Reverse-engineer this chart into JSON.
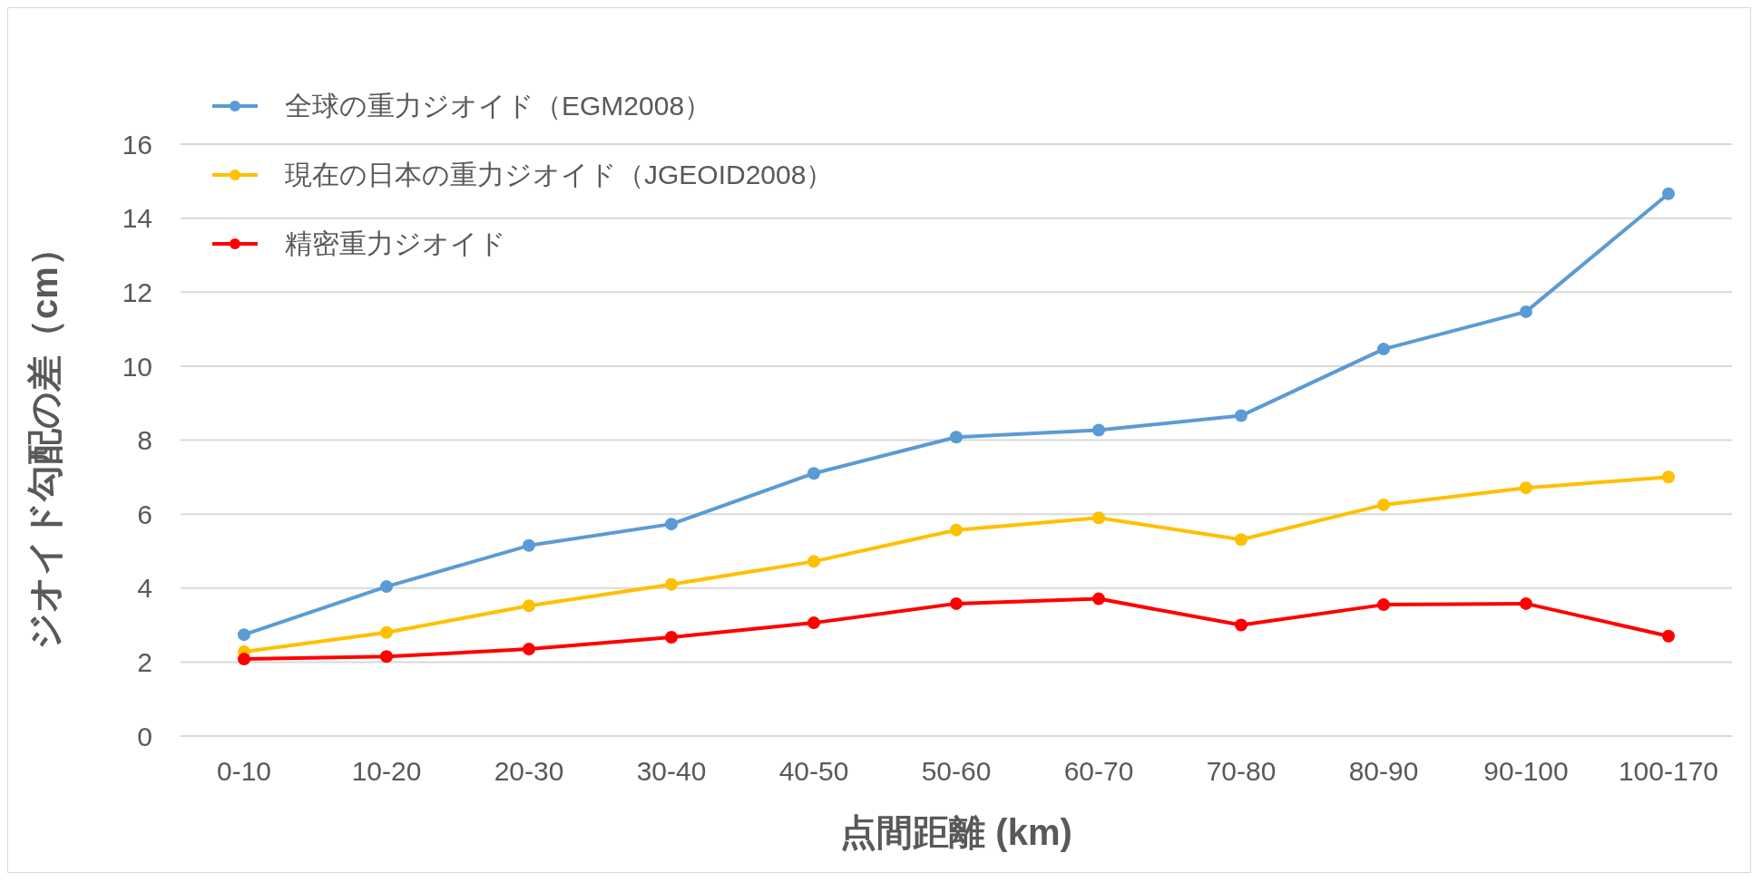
{
  "chart_data": {
    "type": "line",
    "xlabel": "点間距離 (km)",
    "ylabel": "ジオイド勾配の差（cm）",
    "categories": [
      "0-10",
      "10-20",
      "20-30",
      "30-40",
      "40-50",
      "50-60",
      "60-70",
      "70-80",
      "80-90",
      "90-100",
      "100-170"
    ],
    "series": [
      {
        "name": "全球の重力ジオイド（EGM2008）",
        "color": "#5b9bd5",
        "values": [
          2.74,
          4.04,
          5.15,
          5.73,
          7.1,
          8.08,
          8.27,
          8.66,
          10.46,
          11.47,
          14.66
        ]
      },
      {
        "name": "現在の日本の重力ジオイド（JGEOID2008）",
        "color": "#ffc000",
        "values": [
          2.28,
          2.8,
          3.52,
          4.1,
          4.72,
          5.57,
          5.9,
          5.31,
          6.25,
          6.71,
          7.0
        ]
      },
      {
        "name": "精密重力ジオイド",
        "color": "#ff0000",
        "values": [
          2.08,
          2.15,
          2.35,
          2.67,
          3.06,
          3.58,
          3.71,
          3.0,
          3.55,
          3.58,
          2.7
        ]
      }
    ],
    "ylim": [
      0,
      16
    ],
    "yticks": [
      0,
      2,
      4,
      6,
      8,
      10,
      12,
      14,
      16
    ],
    "grid": "y",
    "legend": "top left",
    "marker": "circle",
    "line_style": "solid"
  }
}
